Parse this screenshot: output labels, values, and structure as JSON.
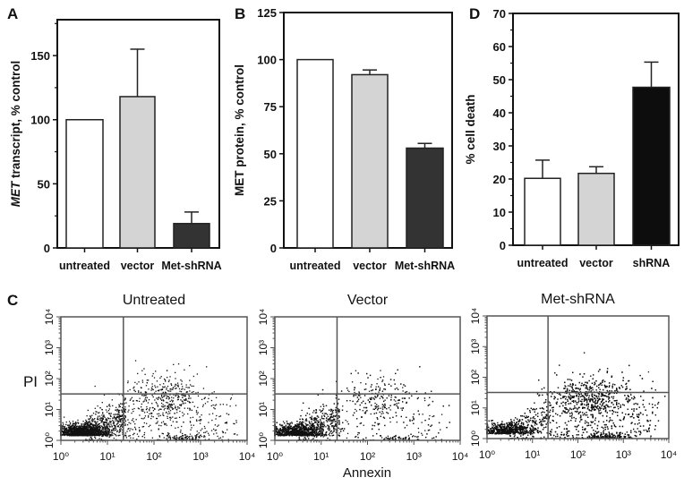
{
  "chart_data": [
    {
      "panel": "A",
      "type": "bar",
      "ylabel_italic": "MET",
      "ylabel": " transcript, % control",
      "categories": [
        "untreated",
        "vector",
        "Met-shRNA"
      ],
      "values": [
        100,
        118,
        19
      ],
      "errors": [
        0,
        37,
        9
      ],
      "colors": [
        "#ffffff",
        "#d4d4d4",
        "#333333"
      ],
      "ylim": [
        0,
        178
      ],
      "yticks": [
        0,
        50,
        100,
        150
      ],
      "minor_yticks": [
        25,
        75,
        125,
        175
      ]
    },
    {
      "panel": "B",
      "type": "bar",
      "ylabel": "MET protein, % control",
      "categories": [
        "untreated",
        "vector",
        "Met-shRNA"
      ],
      "values": [
        100,
        92,
        53
      ],
      "errors": [
        0,
        2.5,
        2.5
      ],
      "colors": [
        "#ffffff",
        "#d4d4d4",
        "#333333"
      ],
      "ylim": [
        0,
        125
      ],
      "yticks": [
        0,
        25,
        50,
        75,
        100,
        125
      ],
      "minor_yticks": []
    },
    {
      "panel": "D",
      "type": "bar",
      "ylabel": "% cell death",
      "categories": [
        "untreated",
        "vector",
        "shRNA"
      ],
      "values": [
        20.2,
        21.7,
        47.7
      ],
      "errors": [
        5.5,
        2.0,
        7.6
      ],
      "colors": [
        "#ffffff",
        "#d4d4d4",
        "#0d0d0d"
      ],
      "ylim": [
        0,
        70
      ],
      "yticks": [
        0,
        10,
        20,
        30,
        40,
        50,
        60,
        70
      ],
      "minor_yticks": [
        5,
        15,
        25,
        35,
        45,
        55,
        65
      ]
    },
    {
      "panel": "C",
      "type": "scatter",
      "xlabel": "Annexin",
      "ylabel": "PI",
      "xscale": "log",
      "yscale": "log",
      "xlim": [
        1,
        10000
      ],
      "ylim": [
        1,
        10000
      ],
      "tick_labels": [
        "10⁰",
        "10¹",
        "10²",
        "10³",
        "10⁴"
      ],
      "x_gate": 22,
      "y_gate": 32,
      "panels": [
        {
          "title": "Untreated",
          "live_fraction": 0.72,
          "apoptotic_fraction": 0.28
        },
        {
          "title": "Vector",
          "live_fraction": 0.74,
          "apoptotic_fraction": 0.26
        },
        {
          "title": "Met-shRNA",
          "live_fraction": 0.42,
          "apoptotic_fraction": 0.58
        }
      ]
    }
  ],
  "panel_letters": [
    "A",
    "B",
    "C",
    "D"
  ]
}
